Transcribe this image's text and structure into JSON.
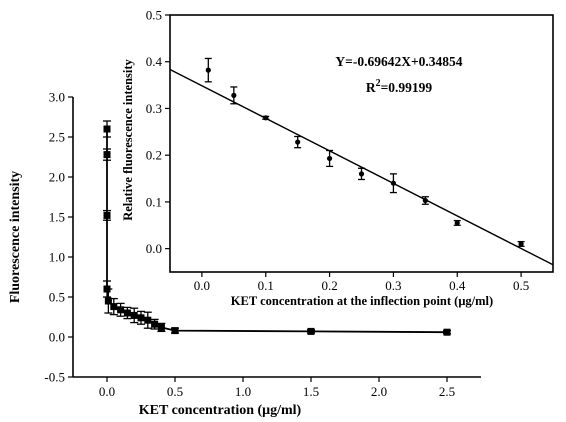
{
  "chart_data": [
    {
      "type": "line",
      "title": "",
      "xlabel": "KET concentration (μg/ml)",
      "ylabel": "Fluorescence intensity",
      "xlim": [
        -0.25,
        2.75
      ],
      "ylim": [
        -0.5,
        3.0
      ],
      "xticks": [
        0.0,
        0.5,
        1.0,
        1.5,
        2.0,
        2.5
      ],
      "xtick_labels": [
        "0.0",
        "0.5",
        "1.0",
        "1.5",
        "2.0",
        "2.5"
      ],
      "yticks": [
        -0.5,
        0.0,
        0.5,
        1.0,
        1.5,
        2.0,
        2.5,
        3.0
      ],
      "ytick_labels": [
        "-0.5",
        "0.0",
        "0.5",
        "1.0",
        "1.5",
        "2.0",
        "2.5",
        "3.0"
      ],
      "grid": false,
      "marker": "square",
      "x": [
        0.0,
        0.0,
        0.0,
        0.0,
        0.01,
        0.05,
        0.1,
        0.15,
        0.2,
        0.25,
        0.3,
        0.35,
        0.4,
        0.5,
        1.5,
        2.5
      ],
      "y": [
        2.6,
        2.28,
        1.52,
        0.6,
        0.45,
        0.38,
        0.34,
        0.3,
        0.27,
        0.24,
        0.21,
        0.16,
        0.12,
        0.08,
        0.07,
        0.06
      ],
      "yerr": [
        0.1,
        0.07,
        0.06,
        0.1,
        0.15,
        0.1,
        0.08,
        0.07,
        0.09,
        0.08,
        0.1,
        0.06,
        0.05,
        0.03,
        0.02,
        0.02
      ]
    },
    {
      "type": "scatter",
      "title": "",
      "xlabel": "KET concentration at the inflection point (μg/ml)",
      "ylabel": "Relative fluorescence intensity",
      "xlim": [
        -0.05,
        0.55
      ],
      "ylim": [
        -0.05,
        0.5
      ],
      "xticks": [
        0.0,
        0.1,
        0.2,
        0.3,
        0.4,
        0.5
      ],
      "xtick_labels": [
        "0.0",
        "0.1",
        "0.2",
        "0.3",
        "0.4",
        "0.5"
      ],
      "yticks": [
        0.0,
        0.1,
        0.2,
        0.3,
        0.4,
        0.5
      ],
      "ytick_labels": [
        "0.0",
        "0.1",
        "0.2",
        "0.3",
        "0.4",
        "0.5"
      ],
      "grid": false,
      "marker": "circle",
      "x": [
        0.01,
        0.05,
        0.1,
        0.15,
        0.2,
        0.25,
        0.3,
        0.35,
        0.4,
        0.5
      ],
      "y": [
        0.382,
        0.328,
        0.28,
        0.228,
        0.193,
        0.16,
        0.14,
        0.103,
        0.055,
        0.01
      ],
      "yerr": [
        0.025,
        0.018,
        0.003,
        0.012,
        0.017,
        0.012,
        0.02,
        0.008,
        0.005,
        0.005
      ],
      "fit": {
        "slope": -0.69642,
        "intercept": 0.34854,
        "equation": "Y=-0.69642X+0.34854",
        "r2_label": "R",
        "r2_exp": "2",
        "r2_value": "=0.99199"
      }
    }
  ]
}
